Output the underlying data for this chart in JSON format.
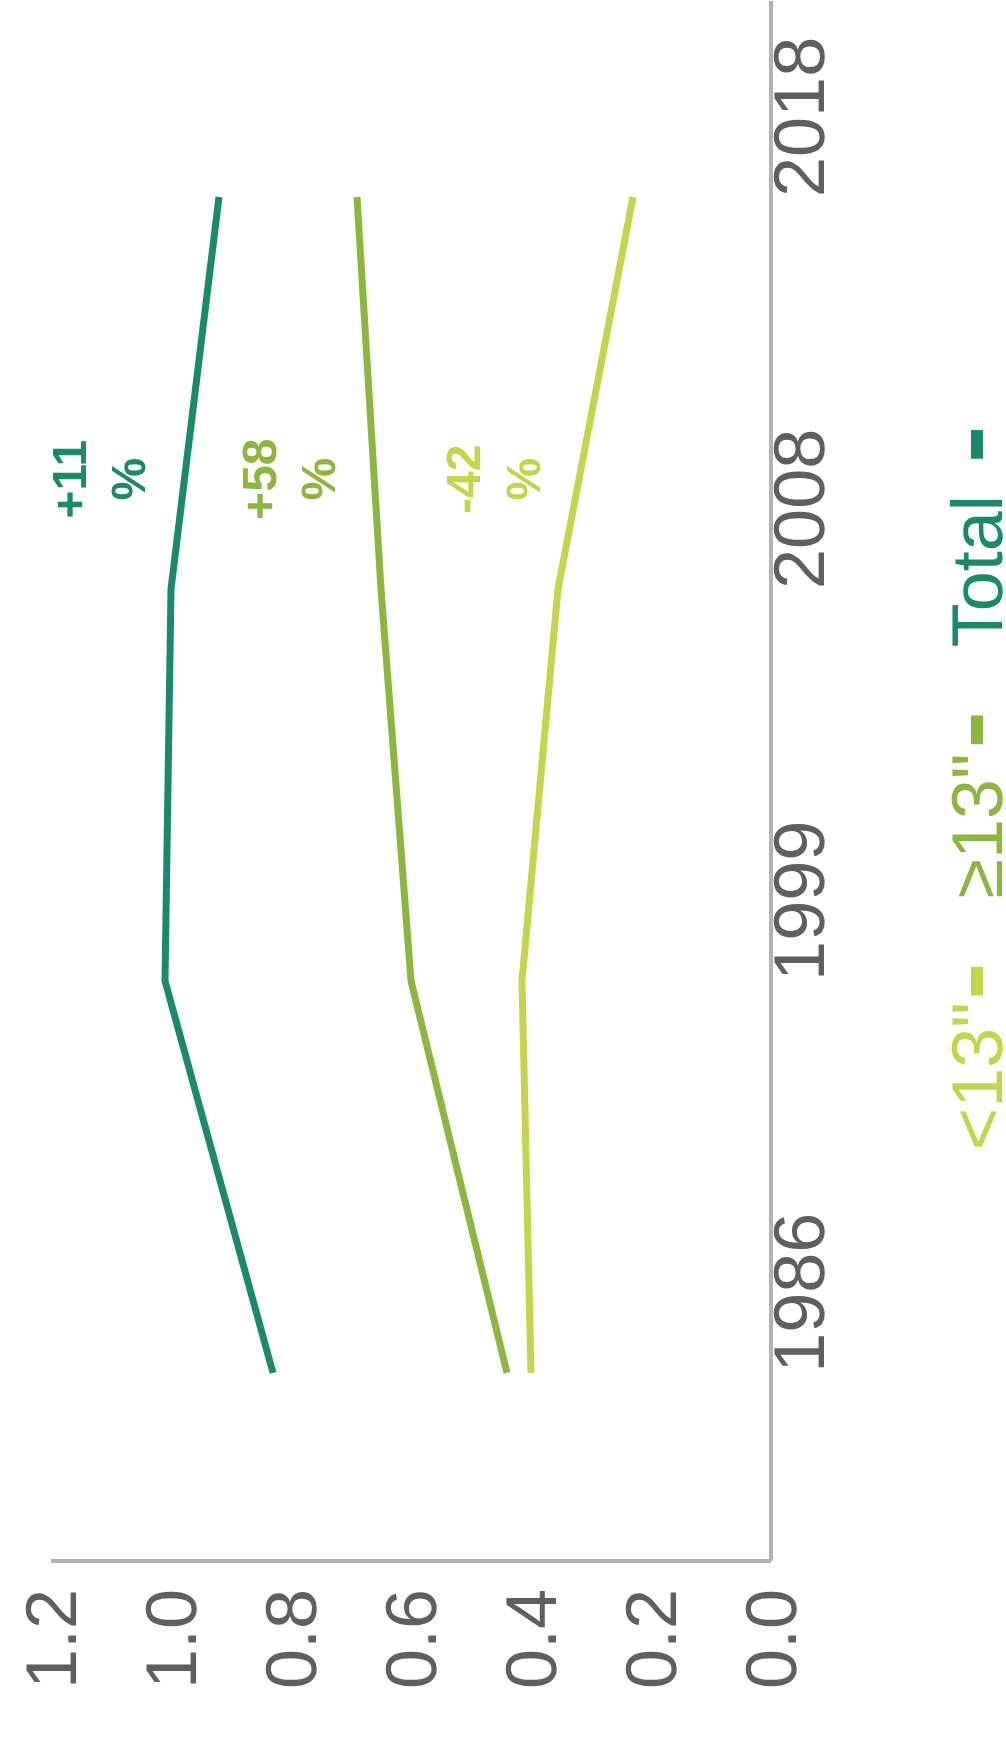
{
  "chart_data": {
    "type": "line",
    "orientation": "horizontal",
    "categories": [
      "2018",
      "2008",
      "1999",
      "1986"
    ],
    "series": [
      {
        "name": "<13\"",
        "color": "#c3d54a",
        "values": [
          0.23,
          0.355,
          0.415,
          0.4
        ]
      },
      {
        "name": "≥13\"",
        "color": "#8db63f",
        "values": [
          0.69,
          0.65,
          0.6,
          0.44
        ]
      },
      {
        "name": "Total",
        "color": "#1b8a6b",
        "values": [
          0.92,
          1.0,
          1.01,
          0.83
        ]
      }
    ],
    "xlim": [
      1.2,
      0
    ],
    "xticks": [
      {
        "value": 1.2,
        "label": "1.2"
      },
      {
        "value": 1.0,
        "label": "1.0"
      },
      {
        "value": 0.8,
        "label": "0.8"
      },
      {
        "value": 0.6,
        "label": "0.6"
      },
      {
        "value": 0.4,
        "label": "0.4"
      },
      {
        "value": 0.2,
        "label": "0.2"
      },
      {
        "value": 0,
        "label": "0.0"
      }
    ],
    "annotations": [
      "-42\n%",
      "+58\n%",
      "+11\n%"
    ],
    "legend": "right",
    "grid": false,
    "line_style": "solid"
  }
}
